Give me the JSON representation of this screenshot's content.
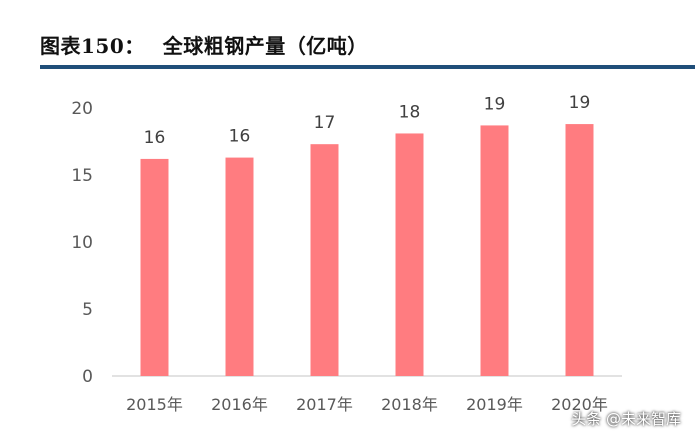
{
  "header": {
    "figure_label": "图表150：",
    "title": "全球粗钢产量（亿吨）"
  },
  "colors": {
    "bar": "#ff7c80",
    "axis": "#d9d9d9",
    "tick_text": "#595959",
    "label_text": "#404040",
    "rule": "#1f4e79"
  },
  "chart_data": {
    "type": "bar",
    "title": "全球粗钢产量（亿吨）",
    "categories": [
      "2015年",
      "2016年",
      "2017年",
      "2018年",
      "2019年",
      "2020年"
    ],
    "values": [
      16.2,
      16.3,
      17.3,
      18.1,
      18.7,
      18.8
    ],
    "data_labels": [
      "16",
      "16",
      "17",
      "18",
      "19",
      "19"
    ],
    "yticks": [
      0,
      5,
      10,
      15,
      20
    ],
    "ylim": [
      0,
      20
    ],
    "xlabel": "",
    "ylabel": "",
    "grid": false,
    "legend": "none"
  },
  "watermark": "头条 @未来智库"
}
